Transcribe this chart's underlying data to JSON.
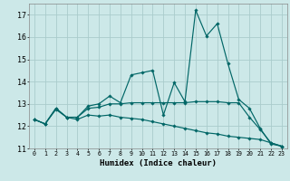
{
  "xlabel": "Humidex (Indice chaleur)",
  "xlim": [
    -0.5,
    23.5
  ],
  "ylim": [
    11,
    17.5
  ],
  "yticks": [
    11,
    12,
    13,
    14,
    15,
    16,
    17
  ],
  "xticks": [
    0,
    1,
    2,
    3,
    4,
    5,
    6,
    7,
    8,
    9,
    10,
    11,
    12,
    13,
    14,
    15,
    16,
    17,
    18,
    19,
    20,
    21,
    22,
    23
  ],
  "xtick_labels": [
    "0",
    "1",
    "2",
    "3",
    "4",
    "5",
    "6",
    "7",
    "8",
    "9",
    "10",
    "11",
    "12",
    "13",
    "14",
    "15",
    "16",
    "17",
    "18",
    "19",
    "20",
    "21",
    "22",
    "23"
  ],
  "background_color": "#cce8e8",
  "grid_color": "#aacccc",
  "line_color": "#006666",
  "series": [
    {
      "x": [
        0,
        1,
        2,
        3,
        4,
        5,
        6,
        7,
        8,
        9,
        10,
        11,
        12,
        13,
        14,
        15,
        16,
        17,
        18,
        19,
        20,
        21,
        22,
        23
      ],
      "y": [
        12.3,
        12.1,
        12.8,
        12.4,
        12.4,
        12.9,
        13.0,
        13.35,
        13.05,
        14.3,
        14.4,
        14.5,
        12.5,
        13.95,
        13.1,
        17.2,
        16.05,
        16.6,
        14.8,
        13.2,
        12.8,
        11.9,
        11.2,
        11.1
      ]
    },
    {
      "x": [
        0,
        1,
        2,
        3,
        4,
        5,
        6,
        7,
        8,
        9,
        10,
        11,
        12,
        13,
        14,
        15,
        16,
        17,
        18,
        19,
        20,
        21,
        22,
        23
      ],
      "y": [
        12.3,
        12.1,
        12.8,
        12.4,
        12.4,
        12.8,
        12.85,
        13.0,
        13.0,
        13.05,
        13.05,
        13.05,
        13.05,
        13.05,
        13.05,
        13.1,
        13.1,
        13.1,
        13.05,
        13.05,
        12.4,
        11.85,
        11.25,
        11.1
      ]
    },
    {
      "x": [
        0,
        1,
        2,
        3,
        4,
        5,
        6,
        7,
        8,
        9,
        10,
        11,
        12,
        13,
        14,
        15,
        16,
        17,
        18,
        19,
        20,
        21,
        22,
        23
      ],
      "y": [
        12.3,
        12.1,
        12.75,
        12.4,
        12.3,
        12.5,
        12.45,
        12.5,
        12.4,
        12.35,
        12.3,
        12.2,
        12.1,
        12.0,
        11.9,
        11.8,
        11.7,
        11.65,
        11.55,
        11.5,
        11.45,
        11.4,
        11.25,
        11.1
      ]
    }
  ]
}
